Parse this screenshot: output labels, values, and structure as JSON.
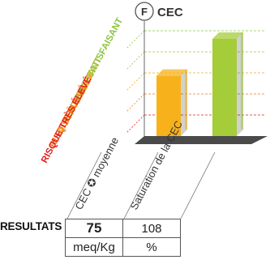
{
  "header": {
    "badge": "F",
    "title": "CEC"
  },
  "chart_data": {
    "type": "bar",
    "categories": [
      "CEC ✪ moyenne",
      "Saturation de la CEC"
    ],
    "values": [
      0.62,
      1.0
    ],
    "ylim": [
      0,
      1.0
    ],
    "grid": true,
    "levels": [
      {
        "label": "TRÈS SATISFAISANT",
        "color": "#8dc63f"
      },
      {
        "label": "SATISFAISANT",
        "color": "#a8c13a"
      },
      {
        "label": "A SURVEILLER",
        "color": "#f5a623"
      },
      {
        "label": "RISQUE ÉLEVÉ",
        "color": "#f07a1e"
      },
      {
        "label": "RISQUE TRÈS ÉLEVÉ",
        "color": "#e02020"
      }
    ],
    "bar_colors": [
      "#f7b21b",
      "#a4cd39"
    ]
  },
  "results": {
    "label": "RESULTATS",
    "values": [
      "75",
      "108"
    ],
    "units": [
      "meq/Kg",
      "%"
    ]
  }
}
